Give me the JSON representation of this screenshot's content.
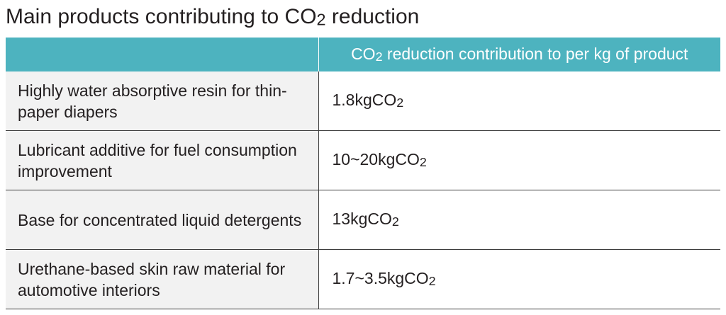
{
  "title": {
    "pre": "Main products contributing to CO",
    "sub": "2",
    "post": " reduction"
  },
  "header": {
    "product_col": "",
    "value_col": {
      "pre": "CO",
      "sub": "2",
      "post": " reduction contribution to per kg of product"
    }
  },
  "rows": [
    {
      "product": "Highly water absorptive resin for thin-paper diapers",
      "value": "1.8kgCO",
      "unit_sub": "2"
    },
    {
      "product": "Lubricant additive for fuel consumption improvement",
      "value": "10~20kgCO",
      "unit_sub": "2"
    },
    {
      "product": "Base for concentrated liquid detergents",
      "value": "13kgCO",
      "unit_sub": "2"
    },
    {
      "product": "Urethane-based skin raw material for automotive interiors",
      "value": "1.7~3.5kgCO",
      "unit_sub": "2"
    }
  ],
  "colors": {
    "header_bg": "#4db3bf",
    "row_bg": "#f2f2f2",
    "border": "#3d3d3d",
    "text": "#231f20"
  }
}
